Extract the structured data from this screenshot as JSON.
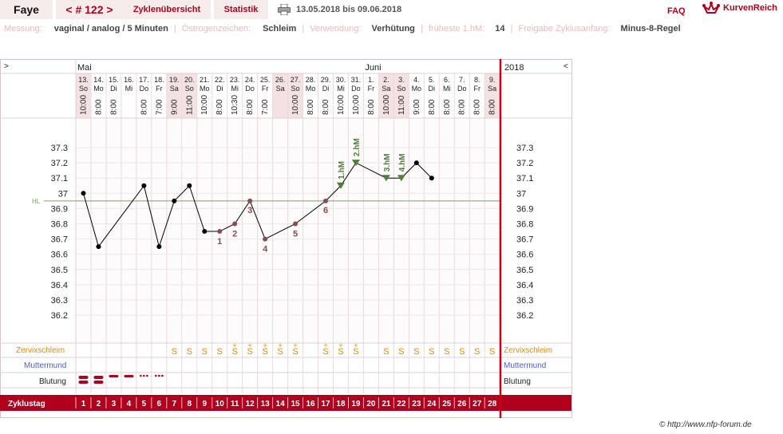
{
  "header": {
    "name": "Faye",
    "cycle_number": "< # 122 >",
    "tab_overview": "Zyklenübersicht",
    "tab_stats": "Statistik",
    "date_range": "13.05.2018 bis 09.06.2018",
    "faq": "FAQ",
    "logo": "KurvenReich"
  },
  "info": {
    "measure_label": "Messung:",
    "measure_value": "vaginal / analog / 5 Minuten",
    "estrogen_label": "Östrogenzeichen:",
    "estrogen_value": "Schleim",
    "usage_label": "Verwendung:",
    "usage_value": "Verhütung",
    "earliest_label": "früheste 1.hM:",
    "earliest_value": "14",
    "release_label": "Freigabe Zyklusanfang:",
    "release_value": "Minus-8-Regel"
  },
  "chart_data": {
    "type": "line",
    "nav_left": ">",
    "nav_right": "<",
    "year": "2018",
    "months": [
      {
        "label": "Mai",
        "day_index": 0
      },
      {
        "label": "Juni",
        "day_index": 19
      }
    ],
    "days": [
      {
        "date": "13.",
        "dow": "So",
        "time": "10:00",
        "cd": "1",
        "temp": 37.0,
        "label": "",
        "mucus": "",
        "weekend": true,
        "blood": "heavy"
      },
      {
        "date": "14.",
        "dow": "Mo",
        "time": "8:00",
        "cd": "2",
        "temp": 36.65,
        "label": "",
        "mucus": "",
        "weekend": false,
        "blood": "heavy"
      },
      {
        "date": "15.",
        "dow": "Di",
        "time": "8:00",
        "cd": "3",
        "temp": null,
        "label": "",
        "mucus": "",
        "weekend": false,
        "blood": "medium"
      },
      {
        "date": "16.",
        "dow": "Mi",
        "time": "",
        "cd": "4",
        "temp": null,
        "label": "",
        "mucus": "",
        "weekend": false,
        "blood": "medium"
      },
      {
        "date": "17.",
        "dow": "Do",
        "time": "8:00",
        "cd": "5",
        "temp": 37.05,
        "label": "",
        "mucus": "",
        "weekend": false,
        "blood": "spot"
      },
      {
        "date": "18.",
        "dow": "Fr",
        "time": "7:00",
        "cd": "6",
        "temp": 36.65,
        "label": "",
        "mucus": "",
        "weekend": false,
        "blood": "spot"
      },
      {
        "date": "19.",
        "dow": "Sa",
        "time": "9:00",
        "cd": "7",
        "temp": 36.95,
        "label": "",
        "mucus": "S",
        "weekend": true,
        "blood": ""
      },
      {
        "date": "20.",
        "dow": "So",
        "time": "11:00",
        "cd": "8",
        "temp": 37.05,
        "label": "",
        "mucus": "S",
        "weekend": true,
        "blood": ""
      },
      {
        "date": "21.",
        "dow": "Mo",
        "time": "10:00",
        "cd": "9",
        "temp": 36.75,
        "label": "",
        "mucus": "S",
        "weekend": false,
        "blood": ""
      },
      {
        "date": "22.",
        "dow": "Di",
        "time": "8:00",
        "cd": "10",
        "temp": 36.75,
        "label": "1",
        "mucus": "S",
        "weekend": false,
        "blood": ""
      },
      {
        "date": "23.",
        "dow": "Mi",
        "time": "10:30",
        "cd": "11",
        "temp": 36.8,
        "label": "2",
        "mucus": "S+",
        "weekend": false,
        "blood": ""
      },
      {
        "date": "24.",
        "dow": "Do",
        "time": "8:00",
        "cd": "12",
        "temp": 36.95,
        "label": "3",
        "mucus": "S+",
        "weekend": false,
        "blood": ""
      },
      {
        "date": "25.",
        "dow": "Fr",
        "time": "7:00",
        "cd": "13",
        "temp": 36.7,
        "label": "4",
        "mucus": "S+",
        "weekend": false,
        "blood": ""
      },
      {
        "date": "26.",
        "dow": "Sa",
        "time": "",
        "cd": "14",
        "temp": null,
        "label": "",
        "mucus": "S+",
        "weekend": true,
        "blood": ""
      },
      {
        "date": "27.",
        "dow": "So",
        "time": "10:00",
        "cd": "15",
        "temp": 36.8,
        "label": "5",
        "mucus": "S+",
        "weekend": true,
        "blood": ""
      },
      {
        "date": "28.",
        "dow": "Mo",
        "time": "8:00",
        "cd": "16",
        "temp": null,
        "label": "",
        "mucus": "",
        "weekend": false,
        "blood": ""
      },
      {
        "date": "29.",
        "dow": "Di",
        "time": "8:00",
        "cd": "17",
        "temp": 36.95,
        "label": "6",
        "mucus": "S+",
        "weekend": false,
        "blood": ""
      },
      {
        "date": "30.",
        "dow": "Mi",
        "time": "10:00",
        "cd": "18",
        "temp": 37.05,
        "label": "1.hM",
        "mucus": "S+",
        "weekend": false,
        "blood": ""
      },
      {
        "date": "31.",
        "dow": "Do",
        "time": "10:00",
        "cd": "19",
        "temp": 37.2,
        "label": "2.hM",
        "mucus": "S+",
        "weekend": false,
        "blood": ""
      },
      {
        "date": "1.",
        "dow": "Fr",
        "time": "8:00",
        "cd": "20",
        "temp": null,
        "label": "",
        "mucus": "",
        "weekend": false,
        "blood": ""
      },
      {
        "date": "2.",
        "dow": "Sa",
        "time": "10:00",
        "cd": "21",
        "temp": 37.1,
        "label": "3.hM",
        "mucus": "S",
        "weekend": true,
        "blood": ""
      },
      {
        "date": "3.",
        "dow": "So",
        "time": "11:00",
        "cd": "22",
        "temp": 37.1,
        "label": "4.hM",
        "mucus": "S",
        "weekend": true,
        "blood": ""
      },
      {
        "date": "4.",
        "dow": "Mo",
        "time": "9:00",
        "cd": "23",
        "temp": 37.2,
        "label": "",
        "mucus": "S",
        "weekend": false,
        "blood": ""
      },
      {
        "date": "5.",
        "dow": "Di",
        "time": "8:00",
        "cd": "24",
        "temp": 37.1,
        "label": "",
        "mucus": "S",
        "weekend": false,
        "blood": ""
      },
      {
        "date": "6.",
        "dow": "Mi",
        "time": "8:00",
        "cd": "25",
        "temp": null,
        "label": "",
        "mucus": "S",
        "weekend": false,
        "blood": ""
      },
      {
        "date": "7.",
        "dow": "Do",
        "time": "8:00",
        "cd": "26",
        "temp": null,
        "label": "",
        "mucus": "S",
        "weekend": false,
        "blood": ""
      },
      {
        "date": "8.",
        "dow": "Fr",
        "time": "8:00",
        "cd": "27",
        "temp": null,
        "label": "",
        "mucus": "S",
        "weekend": false,
        "blood": ""
      },
      {
        "date": "9.",
        "dow": "Sa",
        "time": "8:00",
        "cd": "28",
        "temp": null,
        "label": "",
        "mucus": "S",
        "weekend": true,
        "blood": ""
      }
    ],
    "yticks": [
      "37.3",
      "37.2",
      "37.1",
      "37",
      "36.9",
      "36.8",
      "36.7",
      "36.6",
      "36.5",
      "36.4",
      "36.3",
      "36.2"
    ],
    "ylim": [
      36.2,
      37.3
    ],
    "hl": {
      "label": "HL",
      "value": 36.95
    },
    "row_labels": {
      "mucus": "Zervixschleim",
      "cervix": "Muttermund",
      "bleeding": "Blutung",
      "cycle_day": "Zyklustag"
    },
    "colors": {
      "line": "#000000",
      "pre": "#8b4a52",
      "hm": "#4f7f3a",
      "mucus": "#e08a00",
      "cervix": "#4a5ec8",
      "blood": "#b0001e",
      "accent": "#b0001e"
    }
  },
  "footer": "© http://www.nfp-forum.de"
}
